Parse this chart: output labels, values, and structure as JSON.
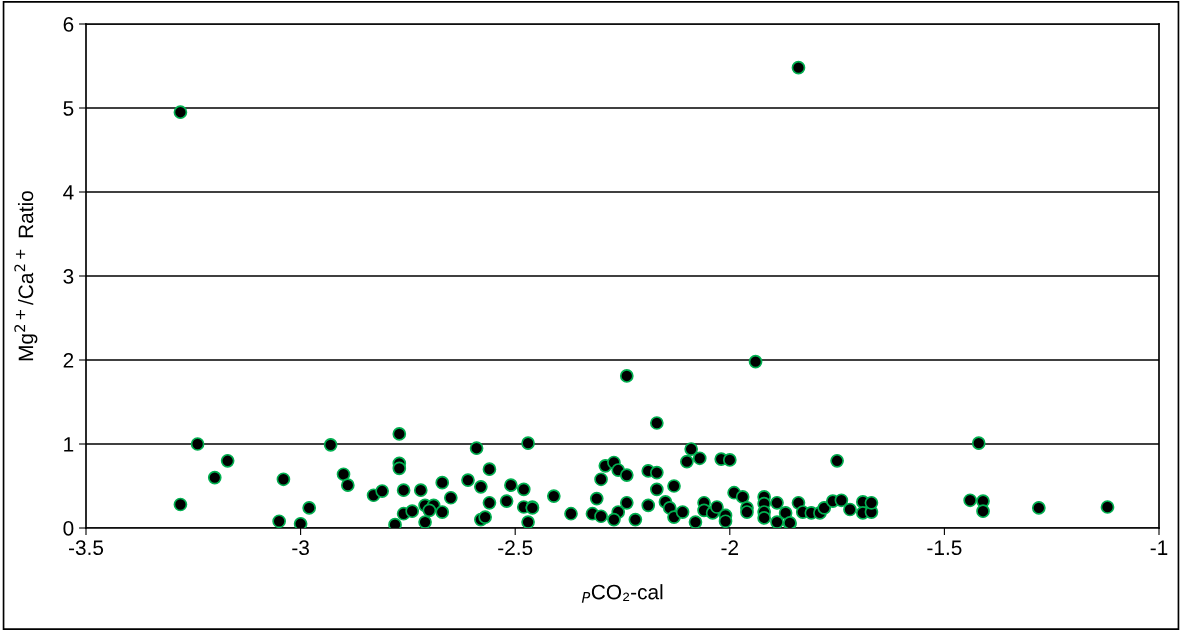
{
  "chart_data": {
    "type": "scatter",
    "xlabel": "$_{P}$CO₂-cal",
    "ylabel": "Mg$^{2+}$/Ca$^{2+}$ Ratio",
    "xlim": [
      -3.5,
      -1
    ],
    "ylim": [
      0,
      6
    ],
    "xticks": [
      -3.5,
      -3,
      -2.5,
      -2,
      -1.5,
      -1
    ],
    "yticks": [
      0,
      1,
      2,
      3,
      4,
      5,
      6
    ],
    "grid": "y",
    "marker": "circle",
    "series": [
      {
        "color": "#000000",
        "x": [
          -3.28,
          -3.28,
          -3.24,
          -3.2,
          -3.17,
          -3.05,
          -3.04,
          -3.0,
          -2.98,
          -2.93,
          -2.9,
          -2.89,
          -2.83,
          -2.81,
          -2.78,
          -2.77,
          -2.77,
          -2.77,
          -2.76,
          -2.76,
          -2.74,
          -2.72,
          -2.71,
          -2.71,
          -2.69,
          -2.7,
          -2.67,
          -2.67,
          -2.65,
          -2.61,
          -2.59,
          -2.58,
          -2.58,
          -2.57,
          -2.56,
          -2.56,
          -2.52,
          -2.51,
          -2.48,
          -2.48,
          -2.47,
          -2.47,
          -2.46,
          -2.46,
          -2.41,
          -2.37,
          -2.32,
          -2.31,
          -2.3,
          -2.3,
          -2.29,
          -2.27,
          -2.26,
          -2.27,
          -2.26,
          -2.24,
          -2.24,
          -2.22,
          -2.19,
          -2.19,
          -2.17,
          -2.17,
          -2.17,
          -2.15,
          -2.14,
          -2.13,
          -2.13,
          -2.11,
          -2.09,
          -2.1,
          -2.08,
          -2.07,
          -2.06,
          -2.06,
          -2.04,
          -2.03,
          -2.02,
          -2.0,
          -2.01,
          -2.01,
          -1.99,
          -1.97,
          -1.96,
          -1.96,
          -1.92,
          -1.92,
          -1.92,
          -1.92,
          -1.89,
          -1.89,
          -1.87,
          -1.86,
          -1.84,
          -1.86,
          -1.83,
          -1.81,
          -1.79,
          -1.78,
          -1.76,
          -1.75,
          -1.74,
          -1.72,
          -1.69,
          -1.69,
          -1.67,
          -1.67,
          -1.44,
          -1.42,
          -1.41,
          -1.41,
          -1.28,
          -1.12,
          -2.24,
          -1.94,
          -1.84
        ],
        "values": [
          4.95,
          0.28,
          1.0,
          0.6,
          0.8,
          0.08,
          0.58,
          0.05,
          0.24,
          0.99,
          0.64,
          0.51,
          0.39,
          0.44,
          0.04,
          0.77,
          0.71,
          1.12,
          0.45,
          0.17,
          0.2,
          0.45,
          0.07,
          0.27,
          0.27,
          0.21,
          0.19,
          0.54,
          0.36,
          0.57,
          0.95,
          0.49,
          0.1,
          0.13,
          0.7,
          0.3,
          0.32,
          0.51,
          0.46,
          0.25,
          1.01,
          0.07,
          0.25,
          0.24,
          0.38,
          0.17,
          0.17,
          0.35,
          0.58,
          0.14,
          0.74,
          0.78,
          0.19,
          0.1,
          0.69,
          0.63,
          0.3,
          0.1,
          0.27,
          0.68,
          0.66,
          1.25,
          0.46,
          0.31,
          0.24,
          0.13,
          0.5,
          0.19,
          0.94,
          0.79,
          0.07,
          0.83,
          0.3,
          0.21,
          0.18,
          0.25,
          0.82,
          0.81,
          0.15,
          0.08,
          0.42,
          0.37,
          0.24,
          0.19,
          0.37,
          0.29,
          0.19,
          0.12,
          0.07,
          0.3,
          0.18,
          0.05,
          0.3,
          0.06,
          0.19,
          0.18,
          0.18,
          0.24,
          0.32,
          0.8,
          0.33,
          0.22,
          0.31,
          0.18,
          0.19,
          0.3,
          0.33,
          1.01,
          0.32,
          0.2,
          0.24,
          0.25,
          1.81,
          1.98,
          5.48
        ]
      }
    ]
  }
}
